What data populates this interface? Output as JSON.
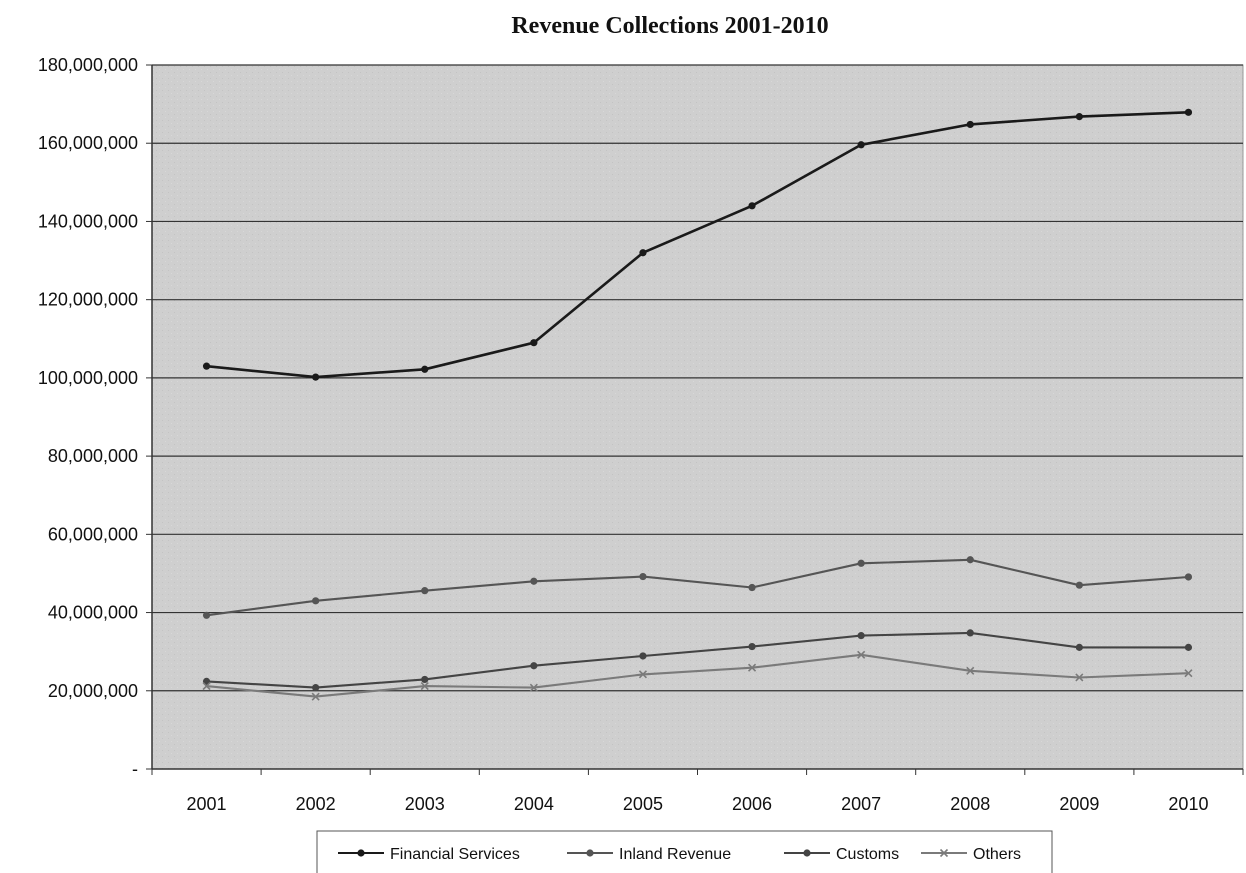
{
  "chart_data": {
    "type": "line",
    "title": "Revenue Collections 2001-2010",
    "xlabel": "",
    "ylabel": "",
    "categories": [
      "2001",
      "2002",
      "2003",
      "2004",
      "2005",
      "2006",
      "2007",
      "2008",
      "2009",
      "2010"
    ],
    "ylim": [
      0,
      180000000
    ],
    "yticks": [
      0,
      20000000,
      40000000,
      60000000,
      80000000,
      100000000,
      120000000,
      140000000,
      160000000,
      180000000
    ],
    "ytick_labels": [
      "-",
      "20,000,000",
      "40,000,000",
      "60,000,000",
      "80,000,000",
      "100,000,000",
      "120,000,000",
      "140,000,000",
      "160,000,000",
      "180,000,000"
    ],
    "grid": "horizontal",
    "legend_position": "bottom",
    "series": [
      {
        "name": "Financial Services",
        "color": "#1a1a1a",
        "marker": "circle",
        "values": [
          103000000,
          100200000,
          102200000,
          109000000,
          132000000,
          144000000,
          159600000,
          164800000,
          166800000,
          167900000
        ]
      },
      {
        "name": "Inland Revenue",
        "color": "#555555",
        "marker": "circle",
        "values": [
          39300000,
          43000000,
          45600000,
          48000000,
          49200000,
          46400000,
          52600000,
          53500000,
          47000000,
          49100000
        ]
      },
      {
        "name": "Customs",
        "color": "#444444",
        "marker": "circle",
        "values": [
          22400000,
          20800000,
          22900000,
          26400000,
          28900000,
          31300000,
          34100000,
          34800000,
          31100000,
          31100000
        ]
      },
      {
        "name": "Others",
        "color": "#7a7a7a",
        "marker": "x",
        "values": [
          21200000,
          18500000,
          21200000,
          20800000,
          24200000,
          25900000,
          29200000,
          25100000,
          23400000,
          24500000
        ]
      }
    ]
  }
}
